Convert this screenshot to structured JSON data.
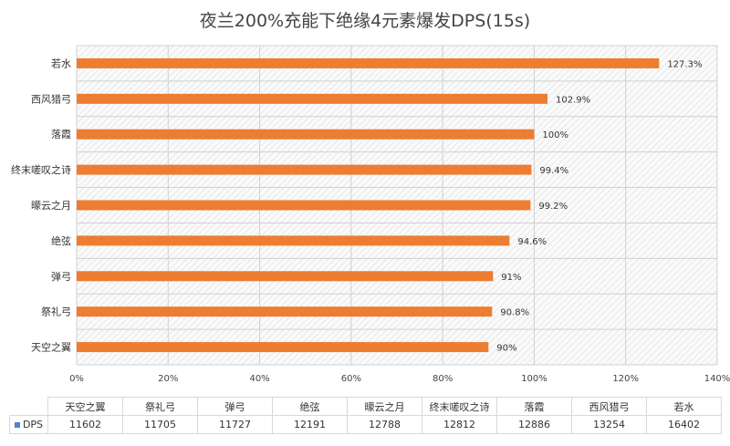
{
  "chart_data": {
    "type": "bar",
    "orientation": "horizontal",
    "title": "夜兰200%充能下绝缘4元素爆发DPS(15s)",
    "categories": [
      "若水",
      "西风猎弓",
      "落霞",
      "终末嗟叹之诗",
      "曚云之月",
      "绝弦",
      "弹弓",
      "祭礼弓",
      "天空之翼"
    ],
    "values": [
      127.3,
      102.9,
      100,
      99.4,
      99.2,
      94.6,
      91,
      90.8,
      90
    ],
    "data_labels": [
      "127.3%",
      "102.9%",
      "100%",
      "99.4%",
      "99.2%",
      "94.6%",
      "91%",
      "90.8%",
      "90%"
    ],
    "xlim": [
      0,
      140
    ],
    "xticks": [
      "0%",
      "20%",
      "40%",
      "60%",
      "80%",
      "100%",
      "120%",
      "140%"
    ],
    "grid": true,
    "bar_color": "#ed7d31",
    "table": {
      "headers": [
        "天空之翼",
        "祭礼弓",
        "弹弓",
        "绝弦",
        "曚云之月",
        "终末嗟叹之诗",
        "落霞",
        "西风猎弓",
        "若水"
      ],
      "series_name": "DPS",
      "series_color": "#4a86c8",
      "values": [
        "11602",
        "11705",
        "11727",
        "12191",
        "12788",
        "12812",
        "12886",
        "13254",
        "16402"
      ]
    }
  }
}
